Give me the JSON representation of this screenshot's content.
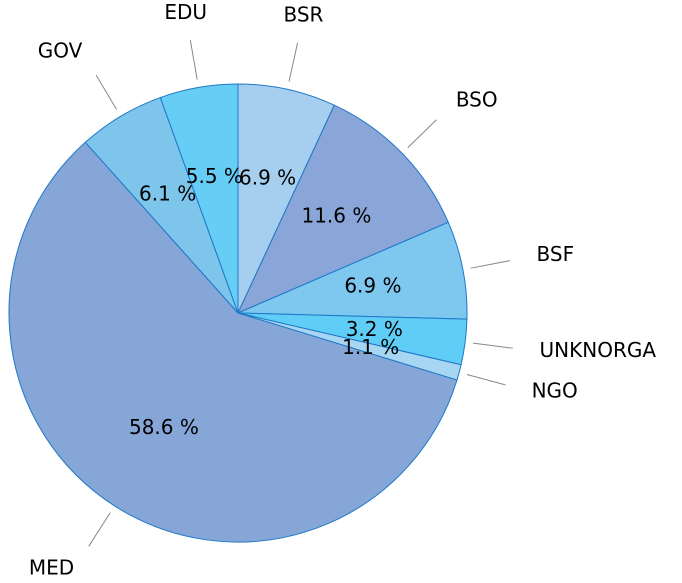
{
  "chart_data": {
    "type": "pie",
    "categories": [
      "BSR",
      "BSO",
      "BSF",
      "UNKNORGA",
      "NGO",
      "MED",
      "GOV",
      "EDU"
    ],
    "values": [
      6.9,
      11.6,
      6.9,
      3.2,
      1.1,
      58.6,
      6.1,
      5.5
    ],
    "value_labels": [
      "6.9 %",
      "11.6 %",
      "6.9 %",
      "3.2 %",
      "1.1 %",
      "58.6 %",
      "6.1 %",
      "5.5 %"
    ],
    "colors": [
      "#a6cfef",
      "#8aa6d8",
      "#7ec8ef",
      "#5fcdf5",
      "#a6d6f2",
      "#86a6d8",
      "#7ec5ec",
      "#66cdf5"
    ]
  }
}
